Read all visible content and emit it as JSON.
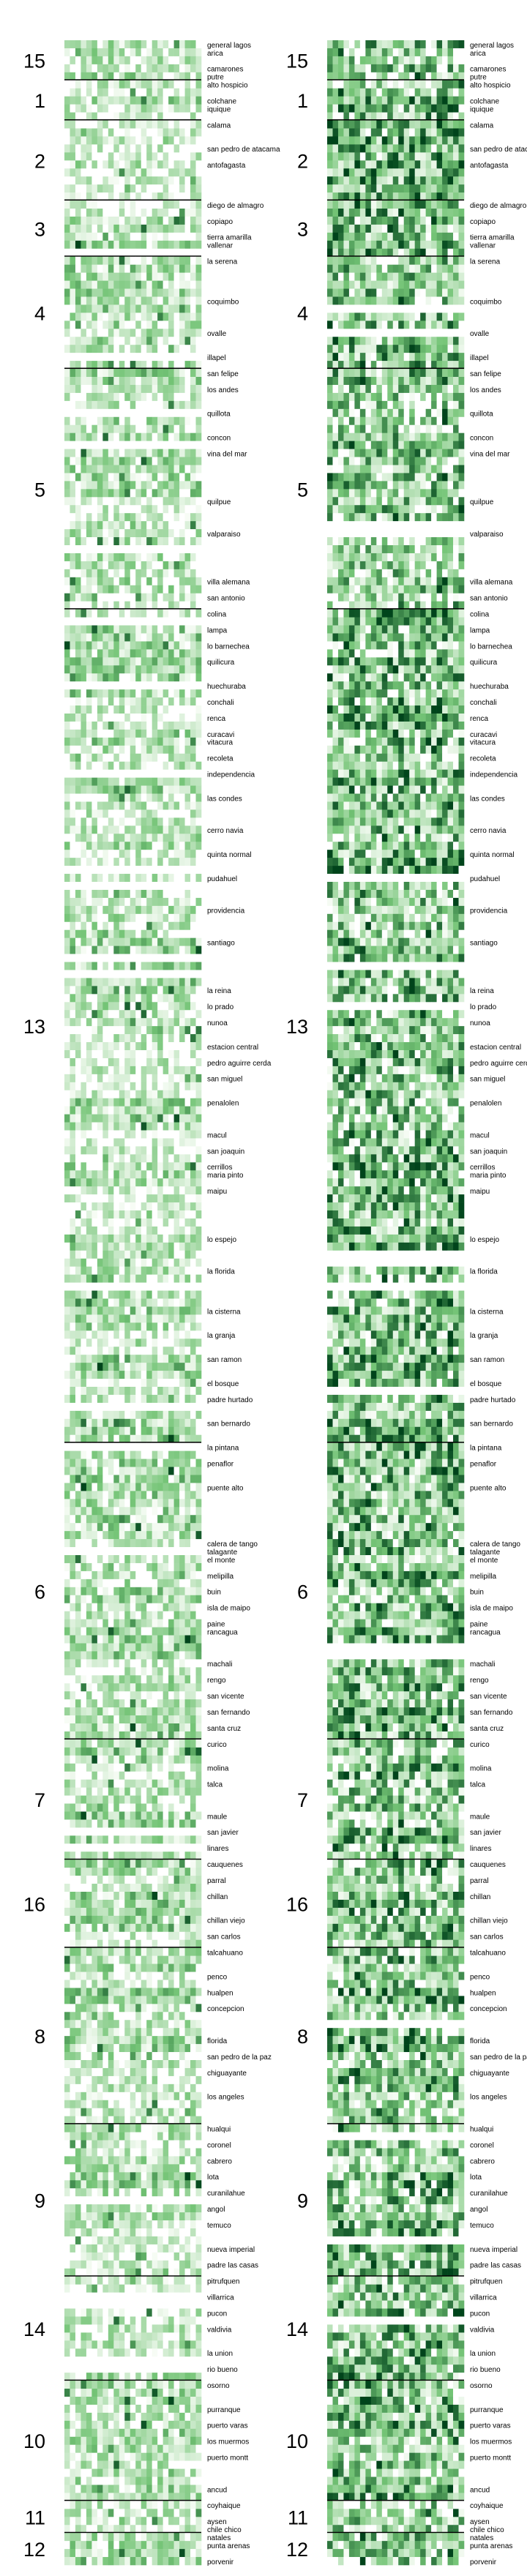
{
  "chart_data": {
    "type": "heatmap",
    "colormap": "Greens",
    "colors": {
      "low": "#f7fcf5",
      "mid": "#74c476",
      "high": "#00441b",
      "divider": "#000000"
    },
    "grid": false,
    "columns_per_panel": 25,
    "panels": [
      {
        "name": "left",
        "density": "light",
        "value_range": [
          0,
          1
        ]
      },
      {
        "name": "right",
        "density": "dark",
        "value_range": [
          0,
          1
        ]
      }
    ],
    "region_labels": [
      "15",
      "1",
      "2",
      "3",
      "4",
      "5",
      "13",
      "6",
      "7",
      "16",
      "8",
      "9",
      "14",
      "10",
      "11",
      "12"
    ],
    "regions": [
      {
        "label": "15",
        "communes": [
          {
            "name": "general lagos",
            "rows": 1
          },
          {
            "name": "arica",
            "rows": 2
          },
          {
            "name": "camarones",
            "rows": 1
          },
          {
            "name": "putre",
            "rows": 1
          }
        ]
      },
      {
        "label": "1",
        "communes": [
          {
            "name": "alto hospicio",
            "rows": 2
          },
          {
            "name": "colchane",
            "rows": 1
          },
          {
            "name": "iquique",
            "rows": 2
          }
        ]
      },
      {
        "label": "2",
        "communes": [
          {
            "name": "calama",
            "rows": 3
          },
          {
            "name": "san pedro de atacama",
            "rows": 2
          },
          {
            "name": "antofagasta",
            "rows": 5
          }
        ]
      },
      {
        "label": "3",
        "communes": [
          {
            "name": "diego de almagro",
            "rows": 2
          },
          {
            "name": "copiapo",
            "rows": 2
          },
          {
            "name": "tierra amarilla",
            "rows": 1
          },
          {
            "name": "vallenar",
            "rows": 2
          }
        ]
      },
      {
        "label": "4",
        "communes": [
          {
            "name": "la serena",
            "rows": 5
          },
          {
            "name": "coquimbo",
            "rows": 4
          },
          {
            "name": "ovalle",
            "rows": 3
          },
          {
            "name": "illapel",
            "rows": 2
          }
        ]
      },
      {
        "label": "5",
        "communes": [
          {
            "name": "san felipe",
            "rows": 2
          },
          {
            "name": "los andes",
            "rows": 3
          },
          {
            "name": "quillota",
            "rows": 3
          },
          {
            "name": "concon",
            "rows": 2
          },
          {
            "name": "vina del mar",
            "rows": 6
          },
          {
            "name": "quilpue",
            "rows": 4
          },
          {
            "name": "valparaiso",
            "rows": 6
          },
          {
            "name": "villa alemana",
            "rows": 2
          },
          {
            "name": "san antonio",
            "rows": 2
          }
        ]
      },
      {
        "label": "13",
        "communes": [
          {
            "name": "colina",
            "rows": 2
          },
          {
            "name": "lampa",
            "rows": 2
          },
          {
            "name": "lo barnechea",
            "rows": 2
          },
          {
            "name": "quilicura",
            "rows": 3
          },
          {
            "name": "huechuraba",
            "rows": 2
          },
          {
            "name": "conchali",
            "rows": 2
          },
          {
            "name": "renca",
            "rows": 2
          },
          {
            "name": "curacavi",
            "rows": 1
          },
          {
            "name": "vitacura",
            "rows": 2
          },
          {
            "name": "recoleta",
            "rows": 2
          },
          {
            "name": "independencia",
            "rows": 3
          },
          {
            "name": "las condes",
            "rows": 4
          },
          {
            "name": "cerro navia",
            "rows": 3
          },
          {
            "name": "quinta normal",
            "rows": 3
          },
          {
            "name": "pudahuel",
            "rows": 4
          },
          {
            "name": "providencia",
            "rows": 4
          },
          {
            "name": "santiago",
            "rows": 6
          },
          {
            "name": "la reina",
            "rows": 2
          },
          {
            "name": "lo prado",
            "rows": 2
          },
          {
            "name": "nunoa",
            "rows": 3
          },
          {
            "name": "estacion central",
            "rows": 2
          },
          {
            "name": "pedro aguirre cerda",
            "rows": 2
          },
          {
            "name": "san miguel",
            "rows": 3
          },
          {
            "name": "penalolen",
            "rows": 4
          },
          {
            "name": "macul",
            "rows": 2
          },
          {
            "name": "san joaquin",
            "rows": 2
          },
          {
            "name": "cerrillos",
            "rows": 1
          },
          {
            "name": "maria pinto",
            "rows": 2
          },
          {
            "name": "maipu",
            "rows": 6
          },
          {
            "name": "lo espejo",
            "rows": 4
          },
          {
            "name": "la florida",
            "rows": 5
          },
          {
            "name": "la cisterna",
            "rows": 3
          },
          {
            "name": "la granja",
            "rows": 3
          },
          {
            "name": "san ramon",
            "rows": 3
          },
          {
            "name": "el bosque",
            "rows": 2
          },
          {
            "name": "padre hurtado",
            "rows": 3
          },
          {
            "name": "san bernardo",
            "rows": 3
          }
        ]
      },
      {
        "label": "6",
        "communes": [
          {
            "name": "la pintana",
            "rows": 2
          },
          {
            "name": "penaflor",
            "rows": 3
          },
          {
            "name": "puente alto",
            "rows": 7
          },
          {
            "name": "calera de tango",
            "rows": 1
          },
          {
            "name": "talagante",
            "rows": 1
          },
          {
            "name": "el monte",
            "rows": 2
          },
          {
            "name": "melipilla",
            "rows": 2
          },
          {
            "name": "buin",
            "rows": 2
          },
          {
            "name": "isla de maipo",
            "rows": 2
          },
          {
            "name": "paine",
            "rows": 1
          },
          {
            "name": "rancagua",
            "rows": 4
          },
          {
            "name": "machali",
            "rows": 2
          },
          {
            "name": "rengo",
            "rows": 2
          },
          {
            "name": "san vicente",
            "rows": 2
          },
          {
            "name": "san fernando",
            "rows": 2
          },
          {
            "name": "santa cruz",
            "rows": 2
          }
        ]
      },
      {
        "label": "7",
        "communes": [
          {
            "name": "curico",
            "rows": 3
          },
          {
            "name": "molina",
            "rows": 2
          },
          {
            "name": "talca",
            "rows": 4
          },
          {
            "name": "maule",
            "rows": 2
          },
          {
            "name": "san javier",
            "rows": 2
          },
          {
            "name": "linares",
            "rows": 2
          }
        ]
      },
      {
        "label": "16",
        "communes": [
          {
            "name": "cauquenes",
            "rows": 2
          },
          {
            "name": "parral",
            "rows": 2
          },
          {
            "name": "chillan",
            "rows": 3
          },
          {
            "name": "chillan viejo",
            "rows": 2
          },
          {
            "name": "san carlos",
            "rows": 2
          }
        ]
      },
      {
        "label": "8",
        "communes": [
          {
            "name": "talcahuano",
            "rows": 3
          },
          {
            "name": "penco",
            "rows": 2
          },
          {
            "name": "hualpen",
            "rows": 2
          },
          {
            "name": "concepcion",
            "rows": 4
          },
          {
            "name": "florida",
            "rows": 2
          },
          {
            "name": "san pedro de la paz",
            "rows": 2
          },
          {
            "name": "chiguayante",
            "rows": 3
          },
          {
            "name": "los angeles",
            "rows": 4
          }
        ]
      },
      {
        "label": "9",
        "communes": [
          {
            "name": "hualqui",
            "rows": 2
          },
          {
            "name": "coronel",
            "rows": 2
          },
          {
            "name": "cabrero",
            "rows": 2
          },
          {
            "name": "lota",
            "rows": 2
          },
          {
            "name": "curanilahue",
            "rows": 2
          },
          {
            "name": "angol",
            "rows": 2
          },
          {
            "name": "temuco",
            "rows": 3
          },
          {
            "name": "nueva imperial",
            "rows": 2
          },
          {
            "name": "padre las casas",
            "rows": 2
          }
        ]
      },
      {
        "label": "14",
        "communes": [
          {
            "name": "pitrufquen",
            "rows": 2
          },
          {
            "name": "villarrica",
            "rows": 2
          },
          {
            "name": "pucon",
            "rows": 2
          },
          {
            "name": "valdivia",
            "rows": 3
          },
          {
            "name": "la union",
            "rows": 2
          },
          {
            "name": "rio bueno",
            "rows": 2
          }
        ]
      },
      {
        "label": "10",
        "communes": [
          {
            "name": "osorno",
            "rows": 3
          },
          {
            "name": "purranque",
            "rows": 2
          },
          {
            "name": "puerto varas",
            "rows": 2
          },
          {
            "name": "los muermos",
            "rows": 2
          },
          {
            "name": "puerto montt",
            "rows": 4
          },
          {
            "name": "ancud",
            "rows": 2
          }
        ]
      },
      {
        "label": "11",
        "communes": [
          {
            "name": "coyhaique",
            "rows": 2
          },
          {
            "name": "aysen",
            "rows": 1
          },
          {
            "name": "chile chico",
            "rows": 1
          }
        ]
      },
      {
        "label": "12",
        "communes": [
          {
            "name": "natales",
            "rows": 1
          },
          {
            "name": "punta arenas",
            "rows": 2
          },
          {
            "name": "porvenir",
            "rows": 1
          }
        ]
      }
    ]
  }
}
